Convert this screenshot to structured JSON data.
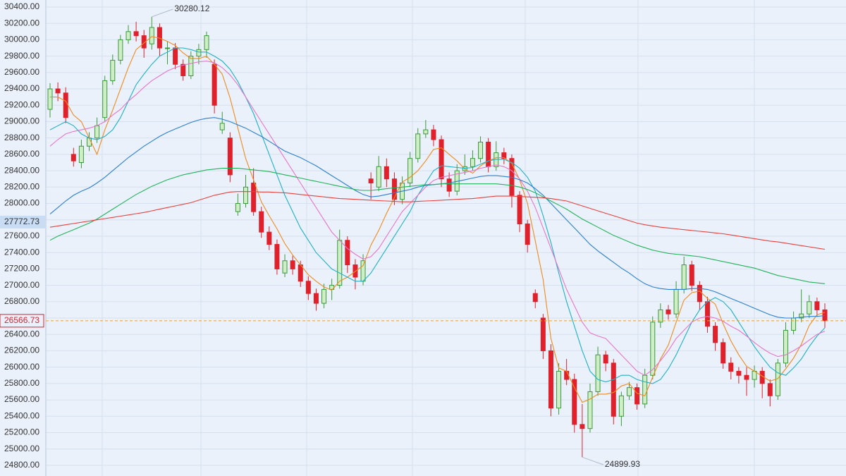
{
  "chart_data": {
    "type": "candlestick",
    "ylim": [
      24670,
      30486
    ],
    "yticks": [
      {
        "value": 24800,
        "label": "24800.00"
      },
      {
        "value": 25000,
        "label": "25000.00"
      },
      {
        "value": 25200,
        "label": "25200.00"
      },
      {
        "value": 25400,
        "label": "25400.00"
      },
      {
        "value": 25600,
        "label": "25600.00"
      },
      {
        "value": 25800,
        "label": "25800.00"
      },
      {
        "value": 26000,
        "label": "26000.00"
      },
      {
        "value": 26200,
        "label": "26200.00"
      },
      {
        "value": 26400,
        "label": "26400.00"
      },
      {
        "value": 26600,
        "label": "26600.00"
      },
      {
        "value": 26800,
        "label": "26800.00"
      },
      {
        "value": 27000,
        "label": "27000.00"
      },
      {
        "value": 27200,
        "label": "27200.00"
      },
      {
        "value": 27400,
        "label": "27400.00"
      },
      {
        "value": 27600,
        "label": "27600.00"
      },
      {
        "value": 27800,
        "label": "27800.00"
      },
      {
        "value": 28000,
        "label": "28000.00"
      },
      {
        "value": 28200,
        "label": "28200.00"
      },
      {
        "value": 28400,
        "label": "28400.00"
      },
      {
        "value": 28600,
        "label": "28600.00"
      },
      {
        "value": 28800,
        "label": "28800.00"
      },
      {
        "value": 29000,
        "label": "29000.00"
      },
      {
        "value": 29200,
        "label": "29200.00"
      },
      {
        "value": 29400,
        "label": "29400.00"
      },
      {
        "value": 29600,
        "label": "29600.00"
      },
      {
        "value": 29800,
        "label": "29800.00"
      },
      {
        "value": 30000,
        "label": "30000.00"
      },
      {
        "value": 30200,
        "label": "30200.00"
      },
      {
        "value": 30400,
        "label": "30400.00"
      }
    ],
    "grid": true,
    "up_color": "#3a9a3a",
    "down_color": "#e0202a",
    "cursor_price": 27772.73,
    "open": [
      29150,
      29400,
      29350,
      28600,
      28500,
      28700,
      28800,
      29050,
      29500,
      29750,
      30000,
      30100,
      30050,
      29950,
      30150,
      29900,
      29900,
      29700,
      29560,
      29800,
      29880,
      29700,
      28900,
      28800,
      27900,
      28000,
      28250,
      27900,
      27650,
      27500,
      27150,
      27300,
      27250,
      27050,
      26900,
      26780,
      26950,
      27000,
      27550,
      27250,
      27050,
      28300,
      28200,
      28450,
      28300,
      28050,
      28250,
      28550,
      28850,
      28900,
      28780,
      28300,
      28150,
      28400,
      28450,
      28550,
      28750,
      28450,
      28620,
      28550,
      28100,
      27750,
      26900,
      26600,
      26200,
      25500,
      25950,
      25850,
      25300,
      25250,
      25700,
      26150,
      26050,
      25400,
      25650,
      25750,
      25550,
      25900,
      26550,
      26700,
      26650,
      26950,
      27250,
      27000,
      26800,
      26500,
      26300,
      26050,
      25950,
      25900,
      25850,
      25950,
      25800,
      25650,
      26050,
      26450,
      26600,
      26650,
      26800,
      26700
    ],
    "high": [
      29470,
      29480,
      29420,
      28680,
      28780,
      28870,
      29050,
      29560,
      29820,
      30060,
      30180,
      30220,
      30120,
      30280.12,
      30200,
      29980,
      29960,
      29760,
      29860,
      29950,
      30100,
      29760,
      29120,
      28870,
      28120,
      28350,
      28430,
      27960,
      27720,
      27560,
      27380,
      27360,
      27300,
      27110,
      26960,
      27020,
      27080,
      27680,
      27600,
      27320,
      27380,
      28380,
      28580,
      28550,
      28380,
      28330,
      28630,
      28920,
      29020,
      28960,
      28830,
      28380,
      28480,
      28600,
      28650,
      28820,
      28800,
      28760,
      28680,
      28600,
      28150,
      27800,
      26950,
      26650,
      26280,
      26050,
      26100,
      25920,
      25550,
      25800,
      26250,
      26200,
      26100,
      25700,
      25820,
      25800,
      25980,
      26620,
      26780,
      26760,
      27050,
      27350,
      27300,
      27050,
      26860,
      26550,
      26350,
      26120,
      26000,
      26000,
      26020,
      26000,
      25850,
      26100,
      26550,
      26680,
      26950,
      26880,
      26850,
      26780
    ],
    "low": [
      29050,
      29250,
      28980,
      28450,
      28430,
      28640,
      28740,
      29000,
      29450,
      29700,
      29950,
      29980,
      29780,
      29880,
      29800,
      29700,
      29640,
      29500,
      29520,
      29700,
      29780,
      29100,
      28850,
      28260,
      27850,
      27950,
      27850,
      27580,
      27430,
      27130,
      27100,
      27130,
      26980,
      26820,
      26690,
      26720,
      26820,
      26960,
      27150,
      26950,
      27000,
      28050,
      28150,
      28200,
      27980,
      27990,
      28200,
      28500,
      28800,
      28700,
      28200,
      28080,
      28100,
      28350,
      28400,
      28500,
      28380,
      28400,
      28480,
      27950,
      27650,
      27400,
      26720,
      26100,
      25400,
      25420,
      25780,
      25200,
      24899.93,
      25200,
      25650,
      25950,
      25300,
      25280,
      25600,
      25480,
      25500,
      25850,
      26480,
      26580,
      26600,
      26900,
      26930,
      26700,
      26420,
      26200,
      25980,
      25850,
      25800,
      25650,
      25750,
      25620,
      25520,
      25600,
      26000,
      26400,
      26550,
      26600,
      26620,
      26480
    ],
    "close": [
      29400,
      29350,
      29050,
      28520,
      28700,
      28800,
      28950,
      29500,
      29750,
      30000,
      30100,
      30050,
      29900,
      30150,
      29900,
      29900,
      29700,
      29560,
      29800,
      29880,
      30050,
      29200,
      28980,
      28350,
      28000,
      28200,
      27900,
      27650,
      27500,
      27200,
      27300,
      27200,
      27050,
      26900,
      26780,
      26950,
      27000,
      27550,
      27250,
      27100,
      27300,
      28250,
      28450,
      28300,
      28050,
      28250,
      28550,
      28850,
      28900,
      28780,
      28300,
      28150,
      28400,
      28450,
      28550,
      28750,
      28450,
      28620,
      28550,
      28100,
      27750,
      27500,
      26800,
      26200,
      25500,
      25950,
      25850,
      25300,
      25250,
      25700,
      26150,
      26050,
      25400,
      25650,
      25750,
      25550,
      25900,
      26550,
      26700,
      26650,
      26950,
      27250,
      27000,
      26800,
      26500,
      26300,
      26050,
      25950,
      25900,
      25850,
      25950,
      25800,
      25650,
      26050,
      26450,
      26600,
      26650,
      26800,
      26700,
      26566.73
    ],
    "series": [
      {
        "color": "#f08a1c",
        "values": [
          29300,
          29300,
          29250,
          29080,
          29000,
          28800,
          28600,
          28900,
          29140,
          29400,
          29660,
          29880,
          29960,
          30040,
          30020,
          29980,
          29930,
          29840,
          29770,
          29770,
          29800,
          29700,
          29580,
          29290,
          28920,
          28550,
          28290,
          28020,
          27850,
          27690,
          27510,
          27370,
          27250,
          27130,
          27050,
          26980,
          26940,
          27050,
          27100,
          27170,
          27240,
          27490,
          27670,
          27880,
          28070,
          28260,
          28320,
          28400,
          28520,
          28660,
          28680,
          28600,
          28520,
          28420,
          28370,
          28460,
          28520,
          28560,
          28560,
          28490,
          28290,
          28000,
          27540,
          27070,
          26350,
          25990,
          25950,
          25750,
          25570,
          25610,
          25670,
          25670,
          25690,
          25770,
          25800,
          25680,
          25650,
          25880,
          26100,
          26270,
          26550,
          26820,
          26910,
          26930,
          26840,
          26770,
          26530,
          26320,
          26150,
          26010,
          25950,
          25890,
          25830,
          25860,
          25980,
          26110,
          26280,
          26510,
          26640,
          26670
        ]
      },
      {
        "color": "#1fb0c8",
        "values": [
          28900,
          28950,
          29000,
          28950,
          28850,
          28800,
          28780,
          28820,
          28900,
          29050,
          29250,
          29450,
          29580,
          29700,
          29800,
          29850,
          29900,
          29900,
          29880,
          29850,
          29850,
          29800,
          29740,
          29640,
          29490,
          29300,
          29100,
          28850,
          28600,
          28350,
          28100,
          27900,
          27700,
          27550,
          27400,
          27300,
          27200,
          27150,
          27100,
          27050,
          27050,
          27150,
          27300,
          27450,
          27600,
          27750,
          27900,
          28100,
          28250,
          28400,
          28460,
          28450,
          28440,
          28430,
          28440,
          28480,
          28520,
          28540,
          28540,
          28500,
          28430,
          28320,
          28150,
          27850,
          27520,
          27150,
          26800,
          26500,
          26200,
          25950,
          25850,
          25820,
          25850,
          25900,
          25900,
          25850,
          25820,
          25800,
          25850,
          25980,
          26150,
          26350,
          26550,
          26700,
          26800,
          26850,
          26800,
          26700,
          26550,
          26400,
          26250,
          26120,
          26000,
          25930,
          25900,
          25990,
          26100,
          26250,
          26380,
          26480
        ]
      },
      {
        "color": "#e676c8",
        "values": [
          28700,
          28780,
          28850,
          28880,
          28900,
          28920,
          28950,
          29000,
          29080,
          29150,
          29250,
          29330,
          29420,
          29500,
          29560,
          29620,
          29660,
          29690,
          29710,
          29730,
          29740,
          29720,
          29660,
          29570,
          29450,
          29300,
          29150,
          29000,
          28850,
          28700,
          28550,
          28400,
          28250,
          28100,
          27950,
          27800,
          27650,
          27550,
          27450,
          27380,
          27320,
          27350,
          27450,
          27600,
          27750,
          27900,
          28000,
          28100,
          28200,
          28280,
          28320,
          28340,
          28360,
          28380,
          28400,
          28430,
          28450,
          28470,
          28450,
          28400,
          28300,
          28150,
          27950,
          27700,
          27450,
          27200,
          26950,
          26750,
          26550,
          26420,
          26380,
          26350,
          26250,
          26150,
          26050,
          25950,
          25900,
          25970,
          26080,
          26200,
          26350,
          26450,
          26550,
          26600,
          26620,
          26600,
          26560,
          26500,
          26450,
          26380,
          26300,
          26230,
          26170,
          26130,
          26150,
          26200,
          26260,
          26330,
          26400,
          26440
        ]
      },
      {
        "color": "#2a7fd4",
        "values": [
          27870,
          27950,
          28030,
          28100,
          28150,
          28190,
          28250,
          28320,
          28400,
          28480,
          28560,
          28630,
          28700,
          28760,
          28820,
          28870,
          28910,
          28950,
          28990,
          29020,
          29040,
          29050,
          29030,
          29000,
          28960,
          28920,
          28870,
          28820,
          28760,
          28700,
          28640,
          28600,
          28560,
          28510,
          28460,
          28400,
          28340,
          28280,
          28220,
          28160,
          28110,
          28080,
          28090,
          28110,
          28130,
          28150,
          28170,
          28200,
          28220,
          28230,
          28240,
          28250,
          28270,
          28290,
          28310,
          28330,
          28340,
          28340,
          28330,
          28320,
          28290,
          28250,
          28180,
          28100,
          28000,
          27900,
          27800,
          27700,
          27600,
          27500,
          27420,
          27350,
          27280,
          27210,
          27150,
          27080,
          27020,
          26980,
          26960,
          26950,
          26950,
          26950,
          26960,
          26960,
          26950,
          26920,
          26880,
          26840,
          26800,
          26760,
          26720,
          26680,
          26640,
          26610,
          26600,
          26600,
          26610,
          26620,
          26620,
          26630
        ]
      },
      {
        "color": "#22b35a",
        "values": [
          27550,
          27600,
          27640,
          27680,
          27720,
          27760,
          27810,
          27870,
          27930,
          27990,
          28050,
          28110,
          28160,
          28210,
          28250,
          28290,
          28320,
          28350,
          28370,
          28390,
          28410,
          28420,
          28430,
          28430,
          28430,
          28420,
          28410,
          28400,
          28390,
          28370,
          28350,
          28330,
          28310,
          28290,
          28270,
          28250,
          28230,
          28210,
          28190,
          28170,
          28160,
          28160,
          28170,
          28180,
          28190,
          28200,
          28210,
          28220,
          28230,
          28230,
          28240,
          28240,
          28240,
          28240,
          28240,
          28240,
          28240,
          28240,
          28230,
          28220,
          28200,
          28170,
          28130,
          28080,
          28030,
          27980,
          27930,
          27870,
          27810,
          27760,
          27710,
          27660,
          27610,
          27570,
          27530,
          27490,
          27460,
          27430,
          27410,
          27390,
          27380,
          27370,
          27360,
          27350,
          27330,
          27310,
          27290,
          27270,
          27250,
          27230,
          27210,
          27180,
          27150,
          27120,
          27100,
          27080,
          27060,
          27040,
          27030,
          27020
        ]
      },
      {
        "color": "#e8413c",
        "values": [
          27710,
          27725,
          27740,
          27755,
          27770,
          27785,
          27800,
          27815,
          27830,
          27845,
          27860,
          27875,
          27890,
          27910,
          27930,
          27950,
          27970,
          27990,
          28010,
          28040,
          28070,
          28100,
          28120,
          28140,
          28145,
          28145,
          28145,
          28140,
          28140,
          28135,
          28130,
          28120,
          28110,
          28100,
          28090,
          28080,
          28070,
          28060,
          28055,
          28050,
          28045,
          28040,
          28035,
          28030,
          28025,
          28020,
          28020,
          28025,
          28030,
          28035,
          28040,
          28045,
          28050,
          28055,
          28060,
          28070,
          28080,
          28090,
          28090,
          28090,
          28085,
          28080,
          28075,
          28070,
          28060,
          28045,
          28030,
          28000,
          27970,
          27940,
          27910,
          27880,
          27850,
          27820,
          27790,
          27760,
          27740,
          27725,
          27710,
          27700,
          27690,
          27680,
          27670,
          27660,
          27650,
          27640,
          27630,
          27615,
          27600,
          27585,
          27570,
          27555,
          27540,
          27530,
          27515,
          27500,
          27485,
          27470,
          27455,
          27440
        ]
      }
    ]
  }
}
